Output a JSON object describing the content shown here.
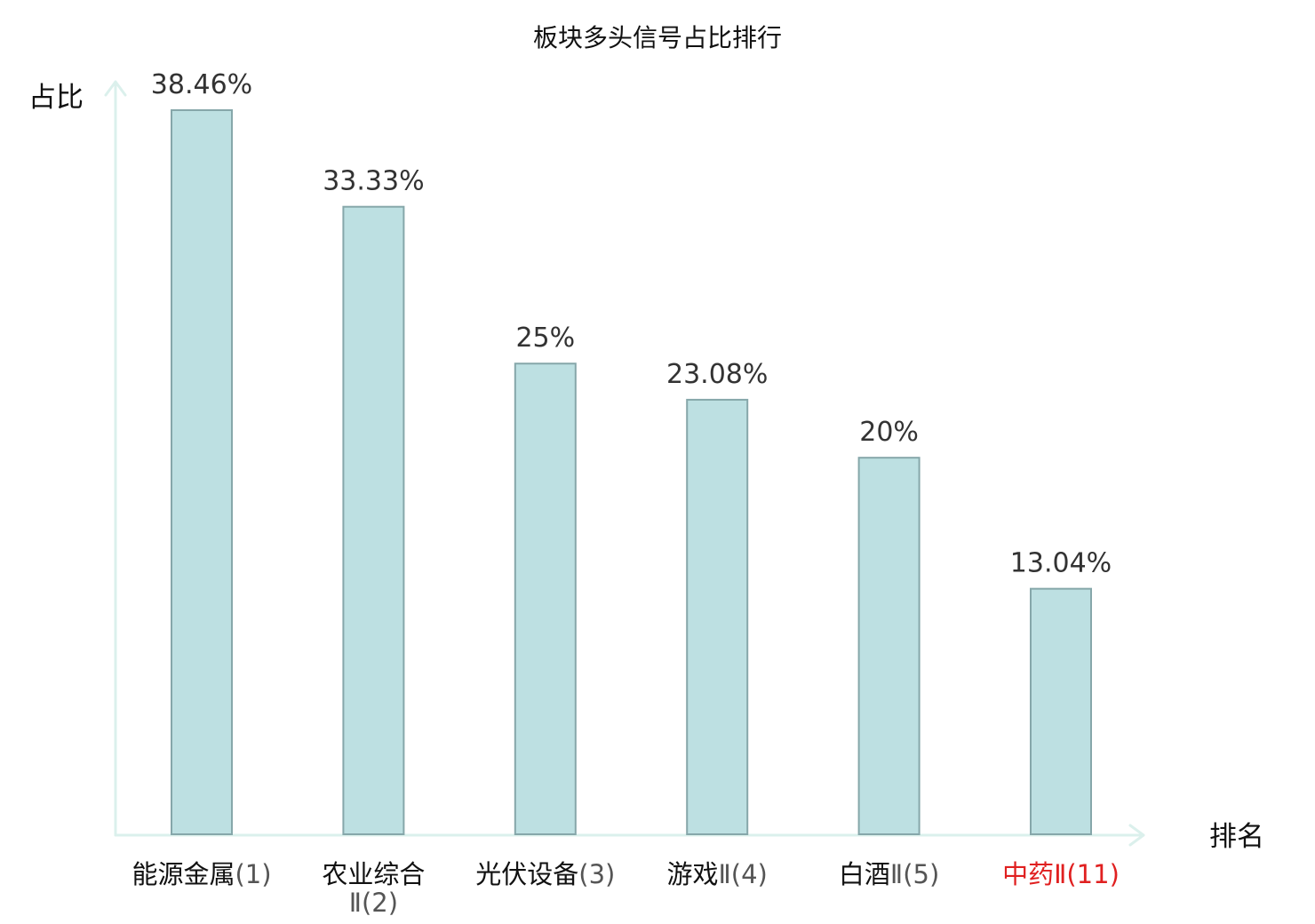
{
  "chart_data": {
    "type": "bar",
    "title": "板块多头信号占比排行",
    "ylabel": "占比",
    "xlabel": "排名",
    "ylim": [
      0,
      38.46
    ],
    "grid": false,
    "categories": [
      {
        "name": "能源金属",
        "rank": "(1)",
        "highlight": false
      },
      {
        "name": "农业综合",
        "rank": "Ⅱ(2)",
        "highlight": false
      },
      {
        "name": "光伏设备",
        "rank": "(3)",
        "highlight": false
      },
      {
        "name": "游戏",
        "rank": "Ⅱ(4)",
        "highlight": false
      },
      {
        "name": "白酒",
        "rank": "Ⅱ(5)",
        "highlight": false
      },
      {
        "name": "中药",
        "rank": "Ⅱ(11)",
        "highlight": true
      }
    ],
    "values": [
      38.46,
      33.33,
      25,
      23.08,
      20,
      13.04
    ],
    "value_labels": [
      "38.46%",
      "33.33%",
      "25%",
      "23.08%",
      "20%",
      "13.04%"
    ]
  },
  "colors": {
    "bar_fill": "#bde0e2",
    "bar_stroke": "#86a7aa",
    "axis": "#dbf0ec",
    "highlight_text": "#e02020"
  }
}
